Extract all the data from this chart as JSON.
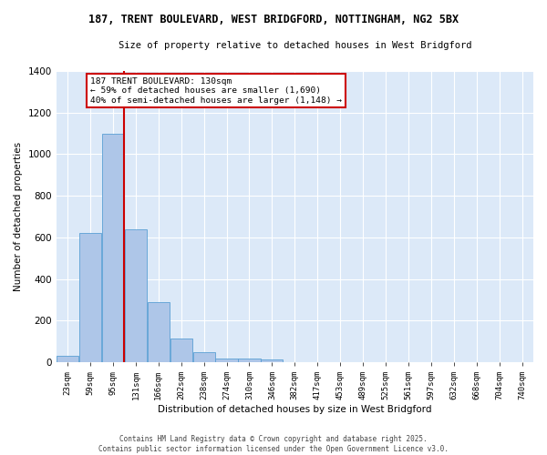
{
  "title_line1": "187, TRENT BOULEVARD, WEST BRIDGFORD, NOTTINGHAM, NG2 5BX",
  "title_line2": "Size of property relative to detached houses in West Bridgford",
  "xlabel": "Distribution of detached houses by size in West Bridgford",
  "ylabel": "Number of detached properties",
  "bin_labels": [
    "23sqm",
    "59sqm",
    "95sqm",
    "131sqm",
    "166sqm",
    "202sqm",
    "238sqm",
    "274sqm",
    "310sqm",
    "346sqm",
    "382sqm",
    "417sqm",
    "453sqm",
    "489sqm",
    "525sqm",
    "561sqm",
    "597sqm",
    "632sqm",
    "668sqm",
    "704sqm",
    "740sqm"
  ],
  "bar_heights": [
    30,
    620,
    1100,
    640,
    290,
    115,
    47,
    20,
    20,
    15,
    0,
    0,
    0,
    0,
    0,
    0,
    0,
    0,
    0,
    0,
    0
  ],
  "bar_color": "#aec6e8",
  "bar_edge_color": "#5a9fd4",
  "vline_color": "#cc0000",
  "annotation_text": "187 TRENT BOULEVARD: 130sqm\n← 59% of detached houses are smaller (1,690)\n40% of semi-detached houses are larger (1,148) →",
  "annotation_box_color": "white",
  "annotation_box_edge": "#cc0000",
  "ylim": [
    0,
    1400
  ],
  "yticks": [
    0,
    200,
    400,
    600,
    800,
    1000,
    1200,
    1400
  ],
  "background_color": "#dce9f8",
  "grid_color": "white",
  "footer_line1": "Contains HM Land Registry data © Crown copyright and database right 2025.",
  "footer_line2": "Contains public sector information licensed under the Open Government Licence v3.0."
}
